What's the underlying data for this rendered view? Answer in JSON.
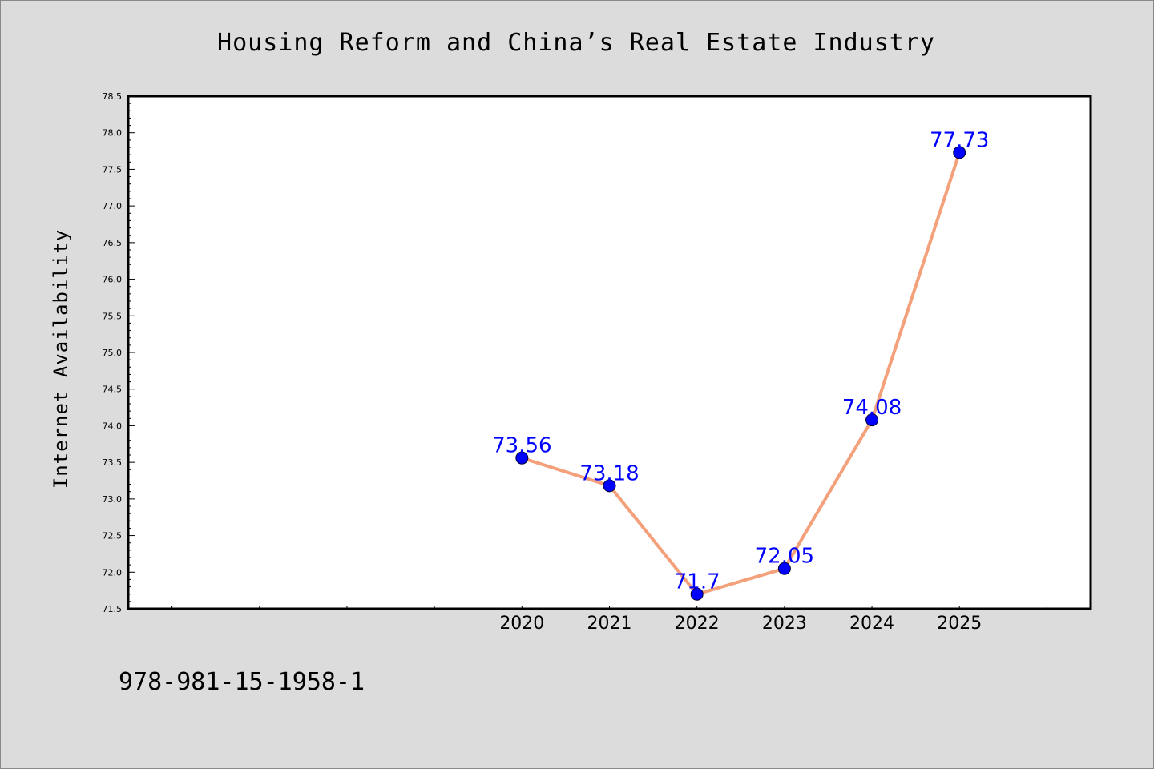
{
  "title": "Housing Reform and China’s Real Estate Industry",
  "footer_text": "978-981-15-1958-1",
  "chart_data": {
    "type": "line",
    "title": "Housing Reform and China’s Real Estate Industry",
    "xlabel": "",
    "ylabel": "Internet Availability",
    "x": [
      2020,
      2021,
      2022,
      2023,
      2024,
      2025
    ],
    "x_tick_labels": [
      "2020",
      "2021",
      "2022",
      "2023",
      "2024",
      "2025"
    ],
    "series": [
      {
        "values": [
          73.56,
          73.18,
          71.7,
          72.05,
          74.08,
          77.73
        ],
        "labels": [
          "73.56",
          "73.18",
          "71.7",
          "72.05",
          "74.08",
          "77.73"
        ],
        "line_color": "#f4a07a",
        "marker_color": "#0000ff"
      }
    ],
    "xlim": [
      2015.5,
      2026.5
    ],
    "ylim": [
      71.5,
      78.5
    ],
    "y_ticks": [
      "71.5",
      "72.0",
      "72.5",
      "73.0",
      "73.5",
      "74.0",
      "74.5",
      "75.0",
      "75.5",
      "76.0",
      "76.5",
      "77.0",
      "77.5",
      "78.0",
      "78.5"
    ],
    "grid": false,
    "legend": "none"
  }
}
